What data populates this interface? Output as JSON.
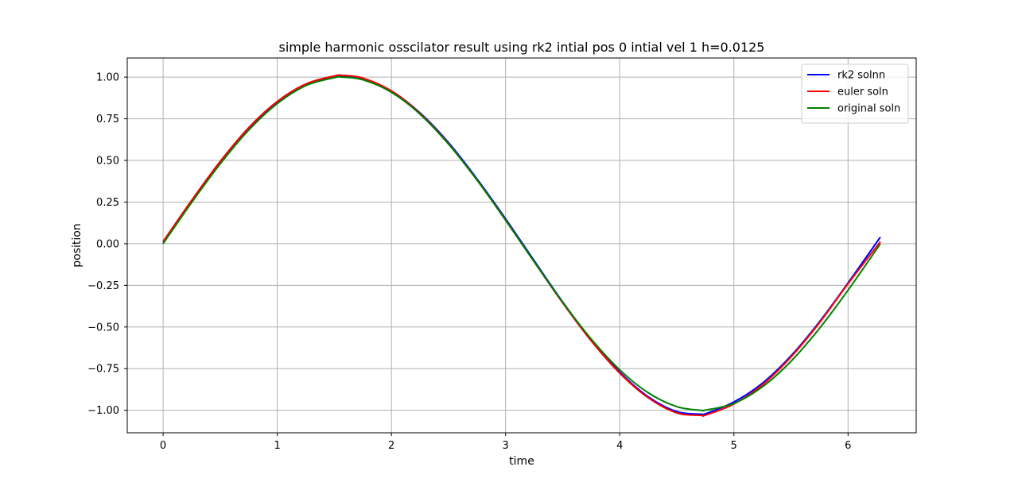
{
  "chart_data": {
    "type": "line",
    "title": "simple harmonic osscilator result using rk2 intial pos 0 intial vel 1 h=0.0125",
    "xlabel": "time",
    "ylabel": "position",
    "xlim": [
      -0.314,
      6.597
    ],
    "ylim": [
      -1.135,
      1.115
    ],
    "xticks": [
      0,
      1,
      2,
      3,
      4,
      5,
      6
    ],
    "xtick_labels": [
      "0",
      "1",
      "2",
      "3",
      "4",
      "5",
      "6"
    ],
    "yticks": [
      1.0,
      0.75,
      0.5,
      0.25,
      0.0,
      -0.25,
      -0.5,
      -0.75,
      -1.0
    ],
    "ytick_labels": [
      "1.00",
      "0.75",
      "0.50",
      "0.25",
      "0.00",
      "−0.25",
      "−0.50",
      "−0.75",
      "−1.00"
    ],
    "grid": true,
    "legend_position": "top-right",
    "series": [
      {
        "name": "rk2 solnn",
        "color": "#0000ff",
        "x": [
          0,
          0.25,
          0.5,
          0.75,
          1.0,
          1.25,
          1.5,
          1.5708,
          1.75,
          2.0,
          2.25,
          2.5,
          2.75,
          3.0,
          3.25,
          3.5,
          3.75,
          4.0,
          4.25,
          4.5,
          4.7124,
          4.75,
          5.0,
          5.25,
          5.5,
          5.75,
          6.0,
          6.2832
        ],
        "y": [
          0.01,
          0.257,
          0.49,
          0.693,
          0.85,
          0.955,
          1.004,
          1.007,
          0.992,
          0.917,
          0.786,
          0.607,
          0.389,
          0.15,
          -0.101,
          -0.349,
          -0.577,
          -0.771,
          -0.919,
          -1.008,
          -1.023,
          -1.021,
          -0.95,
          -0.837,
          -0.673,
          -0.468,
          -0.235,
          0.04
        ]
      },
      {
        "name": "euler soln",
        "color": "#ff0000",
        "x": [
          0,
          0.25,
          0.5,
          0.75,
          1.0,
          1.25,
          1.5,
          1.5708,
          1.75,
          2.0,
          2.25,
          2.5,
          2.75,
          3.0,
          3.25,
          3.5,
          3.75,
          4.0,
          4.25,
          4.5,
          4.7124,
          4.75,
          5.0,
          5.25,
          5.5,
          5.75,
          6.0,
          6.2832
        ],
        "y": [
          0.013,
          0.261,
          0.494,
          0.697,
          0.854,
          0.959,
          1.007,
          1.011,
          0.994,
          0.917,
          0.782,
          0.6,
          0.382,
          0.143,
          -0.108,
          -0.355,
          -0.583,
          -0.777,
          -0.925,
          -1.016,
          -1.03,
          -1.029,
          -0.962,
          -0.847,
          -0.68,
          -0.474,
          -0.24,
          0.012
        ]
      },
      {
        "name": "original soln",
        "color": "#008000",
        "x": [
          0,
          0.25,
          0.5,
          0.75,
          1.0,
          1.25,
          1.5,
          1.5708,
          1.75,
          2.0,
          2.25,
          2.5,
          2.75,
          3.0,
          3.25,
          3.5,
          3.75,
          4.0,
          4.25,
          4.5,
          4.7124,
          4.75,
          5.0,
          5.25,
          5.5,
          5.75,
          6.0,
          6.2832
        ],
        "y": [
          0.0,
          0.247,
          0.479,
          0.682,
          0.841,
          0.949,
          0.997,
          1.0,
          0.984,
          0.909,
          0.778,
          0.598,
          0.382,
          0.141,
          -0.108,
          -0.351,
          -0.572,
          -0.757,
          -0.895,
          -0.978,
          -1.0,
          -0.999,
          -0.959,
          -0.859,
          -0.706,
          -0.508,
          -0.279,
          0.0
        ]
      }
    ]
  }
}
